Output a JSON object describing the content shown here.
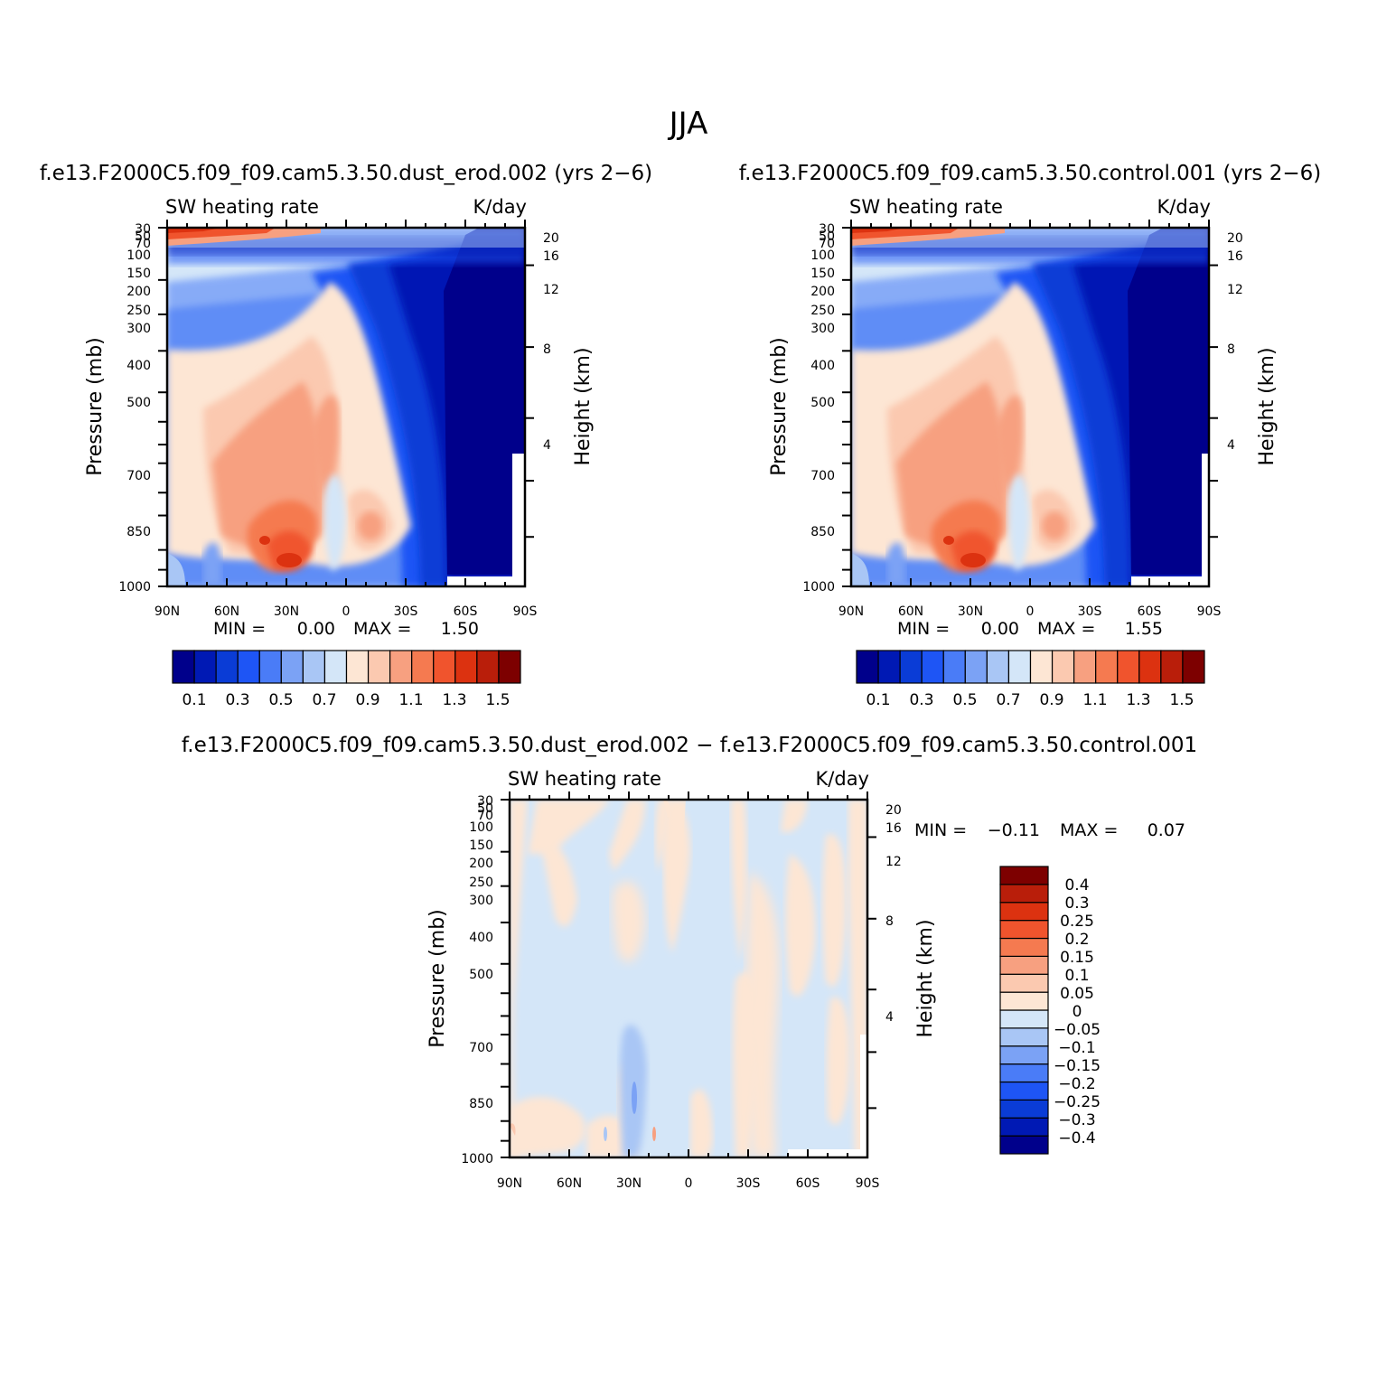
{
  "figure": {
    "title": "JJA"
  },
  "chart_data": [
    {
      "type": "heatmap",
      "id": "dust",
      "title": "f.e13.F2000C5.f09_f09.cam5.3.50.dust_erod.002 (yrs 2−6)",
      "left_string": "SW heating rate",
      "right_string": "K/day",
      "ylabel": "Pressure (mb)",
      "ylabel_right": "Height (km)",
      "x_ticks": [
        "90N",
        "60N",
        "30N",
        "0",
        "30S",
        "60S",
        "90S"
      ],
      "y_ticks": [
        "30",
        "50",
        "70",
        "100",
        "150",
        "200",
        "250",
        "300",
        "400",
        "500",
        "700",
        "850",
        "1000"
      ],
      "height_ticks": [
        "20",
        "16",
        "12",
        "8",
        "4"
      ],
      "xlim": [
        90,
        -90
      ],
      "ylim": [
        1000,
        30
      ],
      "y_scale": "log",
      "min_label": "MIN =",
      "min_value": "0.00",
      "max_label": "MAX =",
      "max_value": "1.50",
      "levels": [
        0.1,
        0.2,
        0.3,
        0.4,
        0.5,
        0.6,
        0.7,
        0.8,
        0.9,
        1.0,
        1.1,
        1.2,
        1.3,
        1.4,
        1.5
      ],
      "colorbar_labels": [
        "0.1",
        "0.3",
        "0.5",
        "0.7",
        "0.9",
        "1.1",
        "1.3",
        "1.5"
      ],
      "colors": [
        "#00008b",
        "#0019b4",
        "#0a3cd6",
        "#1e55f5",
        "#4a7cf7",
        "#7ba2f5",
        "#a9c6f5",
        "#d4e6f8",
        "#fde6d4",
        "#fbc9b0",
        "#f7a080",
        "#f57a50",
        "#f0542d",
        "#dc3210",
        "#b91e0a",
        "#7d0000"
      ]
    },
    {
      "type": "heatmap",
      "id": "control",
      "title": "f.e13.F2000C5.f09_f09.cam5.3.50.control.001 (yrs 2−6)",
      "left_string": "SW heating rate",
      "right_string": "K/day",
      "ylabel": "Pressure (mb)",
      "ylabel_right": "Height (km)",
      "x_ticks": [
        "90N",
        "60N",
        "30N",
        "0",
        "30S",
        "60S",
        "90S"
      ],
      "y_ticks": [
        "30",
        "50",
        "70",
        "100",
        "150",
        "200",
        "250",
        "300",
        "400",
        "500",
        "700",
        "850",
        "1000"
      ],
      "height_ticks": [
        "20",
        "16",
        "12",
        "8",
        "4"
      ],
      "xlim": [
        90,
        -90
      ],
      "ylim": [
        1000,
        30
      ],
      "y_scale": "log",
      "min_label": "MIN =",
      "min_value": "0.00",
      "max_label": "MAX =",
      "max_value": "1.55",
      "levels": [
        0.1,
        0.2,
        0.3,
        0.4,
        0.5,
        0.6,
        0.7,
        0.8,
        0.9,
        1.0,
        1.1,
        1.2,
        1.3,
        1.4,
        1.5
      ],
      "colorbar_labels": [
        "0.1",
        "0.3",
        "0.5",
        "0.7",
        "0.9",
        "1.1",
        "1.3",
        "1.5"
      ],
      "colors": [
        "#00008b",
        "#0019b4",
        "#0a3cd6",
        "#1e55f5",
        "#4a7cf7",
        "#7ba2f5",
        "#a9c6f5",
        "#d4e6f8",
        "#fde6d4",
        "#fbc9b0",
        "#f7a080",
        "#f57a50",
        "#f0542d",
        "#dc3210",
        "#b91e0a",
        "#7d0000"
      ]
    },
    {
      "type": "heatmap",
      "id": "diff",
      "title": "f.e13.F2000C5.f09_f09.cam5.3.50.dust_erod.002 − f.e13.F2000C5.f09_f09.cam5.3.50.control.001",
      "left_string": "SW heating rate",
      "right_string": "K/day",
      "ylabel": "Pressure (mb)",
      "ylabel_right": "Height (km)",
      "x_ticks": [
        "90N",
        "60N",
        "30N",
        "0",
        "30S",
        "60S",
        "90S"
      ],
      "y_ticks": [
        "30",
        "50",
        "70",
        "100",
        "150",
        "200",
        "250",
        "300",
        "400",
        "500",
        "700",
        "850",
        "1000"
      ],
      "height_ticks": [
        "20",
        "16",
        "12",
        "8",
        "4"
      ],
      "xlim": [
        90,
        -90
      ],
      "ylim": [
        1000,
        30
      ],
      "y_scale": "log",
      "min_label": "MIN =",
      "min_value": "−0.11",
      "max_label": "MAX =",
      "max_value": "0.07",
      "levels": [
        -0.4,
        -0.3,
        -0.25,
        -0.2,
        -0.15,
        -0.1,
        -0.05,
        0,
        0.05,
        0.1,
        0.15,
        0.2,
        0.25,
        0.3,
        0.4
      ],
      "colorbar_labels": [
        "0.4",
        "0.3",
        "0.25",
        "0.2",
        "0.15",
        "0.1",
        "0.05",
        "0",
        "−0.05",
        "−0.1",
        "−0.15",
        "−0.2",
        "−0.25",
        "−0.3",
        "−0.4"
      ],
      "colors": [
        "#00008b",
        "#0019b4",
        "#0a3cd6",
        "#1e55f5",
        "#4a7cf7",
        "#7ba2f5",
        "#a9c6f5",
        "#d4e6f8",
        "#fde6d4",
        "#fbc9b0",
        "#f7a080",
        "#f57a50",
        "#f0542d",
        "#dc3210",
        "#b91e0a",
        "#7d0000"
      ]
    }
  ]
}
